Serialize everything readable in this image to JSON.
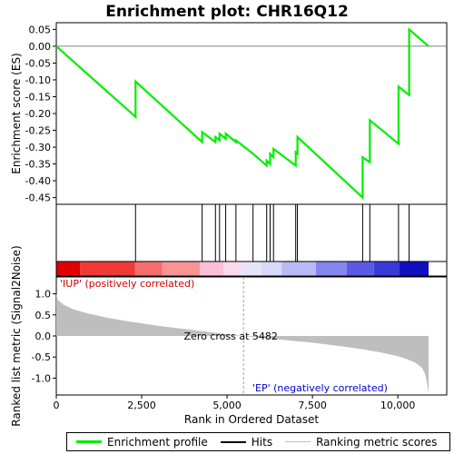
{
  "chart_data": {
    "type": "line",
    "title": "Enrichment plot: CHR16Q12",
    "top_panel": {
      "ylabel": "Enrichment score (ES)",
      "ylim": [
        -0.47,
        0.07
      ],
      "yticks": [
        0.05,
        0.0,
        -0.05,
        -0.1,
        -0.15,
        -0.2,
        -0.25,
        -0.3,
        -0.35,
        -0.4,
        -0.45
      ],
      "ytick_labels": [
        "0.05",
        "0.00",
        "-0.05",
        "-0.10",
        "-0.15",
        "-0.20",
        "-0.25",
        "-0.30",
        "-0.35",
        "-0.40",
        "-0.45"
      ],
      "series": [
        {
          "x": [
            0,
            2320,
            2320,
            4270,
            4270,
            4660,
            4660,
            4780,
            4780,
            4960,
            4960,
            5260,
            5260,
            5760,
            5760,
            6160,
            6160,
            6260,
            6260,
            6360,
            6360,
            7010,
            7010,
            7060,
            7060,
            8970,
            8970,
            9180,
            9180,
            10020,
            10020,
            10330,
            10330,
            10900
          ],
          "y": [
            0.0,
            -0.21,
            -0.105,
            -0.285,
            -0.255,
            -0.285,
            -0.27,
            -0.28,
            -0.26,
            -0.275,
            -0.26,
            -0.285,
            -0.28,
            -0.32,
            -0.32,
            -0.355,
            -0.34,
            -0.35,
            -0.32,
            -0.33,
            -0.305,
            -0.355,
            -0.315,
            -0.32,
            -0.27,
            -0.45,
            -0.33,
            -0.345,
            -0.22,
            -0.29,
            -0.12,
            -0.145,
            0.05,
            0.0
          ]
        }
      ]
    },
    "hits": [
      2320,
      4270,
      4660,
      4780,
      4960,
      5260,
      5760,
      6160,
      6260,
      6360,
      7010,
      7060,
      8970,
      9180,
      10020,
      10330
    ],
    "bottom_panel": {
      "ylabel": "Ranked list metric (Signal2Noise)",
      "xlabel": "Rank in Ordered Dataset",
      "xlim": [
        0,
        10900
      ],
      "xticks": [
        0,
        2500,
        5000,
        7500,
        10000
      ],
      "xtick_labels": [
        "0",
        "2,500",
        "5,000",
        "7,500",
        "10,000"
      ],
      "ylim": [
        -1.4,
        1.4
      ],
      "yticks": [
        1.0,
        0.5,
        0.0,
        -0.5,
        -1.0
      ],
      "ytick_labels": [
        "1.0",
        "0.5",
        "0.0",
        "-0.5",
        "-1.0"
      ],
      "metric_profile": {
        "x": [
          0,
          50,
          200,
          500,
          1000,
          1500,
          2000,
          2500,
          3000,
          3500,
          4000,
          4500,
          5000,
          5482,
          6000,
          6500,
          7000,
          7500,
          8000,
          8500,
          9000,
          9500,
          10000,
          10300,
          10500,
          10700,
          10800,
          10850,
          10900
        ],
        "y": [
          1.0,
          0.85,
          0.75,
          0.63,
          0.52,
          0.43,
          0.36,
          0.3,
          0.24,
          0.19,
          0.14,
          0.09,
          0.04,
          0.0,
          -0.04,
          -0.08,
          -0.12,
          -0.16,
          -0.21,
          -0.26,
          -0.32,
          -0.39,
          -0.48,
          -0.56,
          -0.63,
          -0.75,
          -0.9,
          -1.1,
          -1.35
        ]
      },
      "zero_cross": 5482,
      "zero_cross_label": "Zero cross at 5482",
      "positive_label": "'IUP' (positively correlated)",
      "negative_label": "'EP' (negatively correlated)"
    },
    "legend": [
      "Enrichment profile",
      "Hits",
      "Ranking metric scores"
    ]
  },
  "colors": {
    "es_line": "#00ee00",
    "positive_label": "#cc0000",
    "negative_label": "#0000cc",
    "metric_fill": "#bebebe",
    "zero_line": "#808080"
  }
}
